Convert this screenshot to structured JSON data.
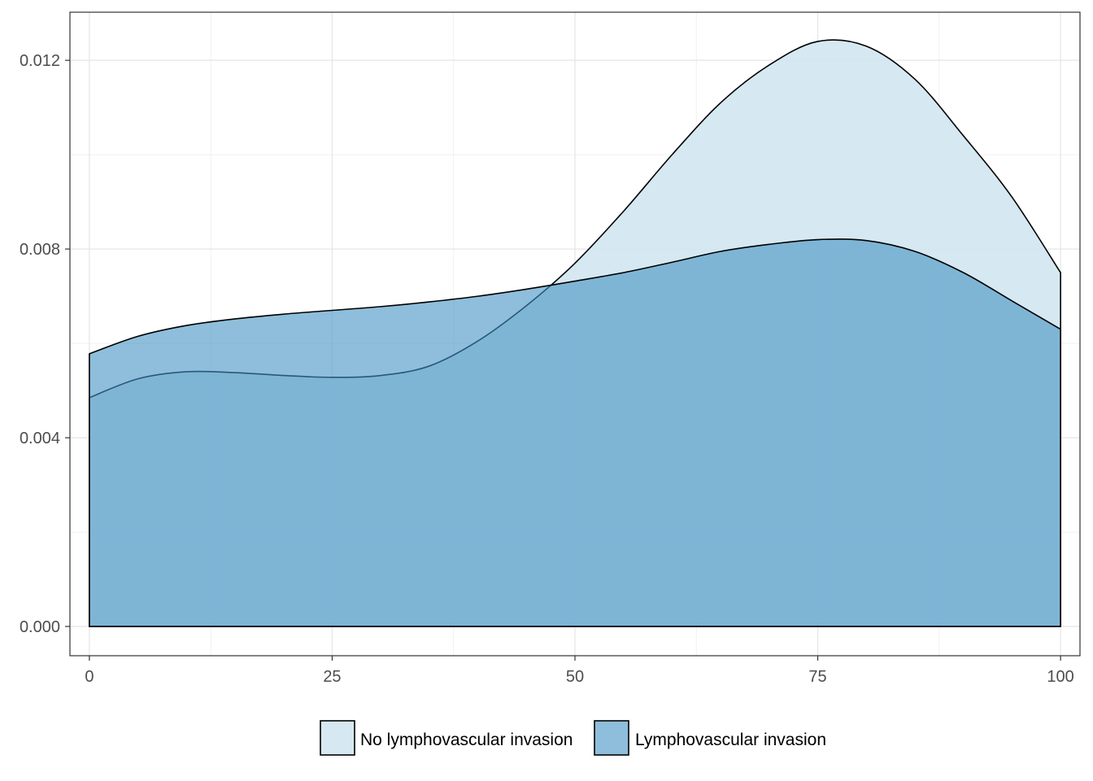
{
  "chart_data": {
    "type": "area",
    "title": "",
    "xlabel": "",
    "ylabel": "",
    "xlim": [
      -2,
      102
    ],
    "ylim": [
      -0.00062,
      0.01302
    ],
    "x_ticks": [
      0,
      25,
      50,
      75,
      100
    ],
    "x_tick_labels": [
      "0",
      "25",
      "50",
      "75",
      "100"
    ],
    "y_ticks": [
      0.0,
      0.004,
      0.008,
      0.012
    ],
    "y_tick_labels": [
      "0.000",
      "0.004",
      "0.008",
      "0.012"
    ],
    "grid": true,
    "legend_position": "bottom",
    "series": [
      {
        "name": "No lymphovascular invasion",
        "color": "#d1e5f0",
        "x": [
          0,
          5,
          10,
          15,
          20,
          25,
          30,
          35,
          40,
          45,
          50,
          55,
          60,
          65,
          70,
          75,
          80,
          85,
          90,
          95,
          100
        ],
        "y": [
          0.00485,
          0.00525,
          0.0054,
          0.00538,
          0.00532,
          0.00528,
          0.00532,
          0.00552,
          0.00605,
          0.0068,
          0.0077,
          0.0088,
          0.01,
          0.0111,
          0.0119,
          0.0124,
          0.0123,
          0.0116,
          0.0104,
          0.0091,
          0.0075
        ]
      },
      {
        "name": "Lymphovascular invasion",
        "color": "#4393c3",
        "x": [
          0,
          5,
          10,
          15,
          20,
          25,
          30,
          35,
          40,
          45,
          50,
          55,
          60,
          65,
          70,
          75,
          80,
          85,
          90,
          95,
          100
        ],
        "y": [
          0.00578,
          0.00615,
          0.00638,
          0.00652,
          0.00662,
          0.0067,
          0.00678,
          0.00688,
          0.007,
          0.00715,
          0.00732,
          0.0075,
          0.00772,
          0.00795,
          0.0081,
          0.0082,
          0.00818,
          0.00795,
          0.0075,
          0.0069,
          0.0063
        ]
      }
    ]
  }
}
